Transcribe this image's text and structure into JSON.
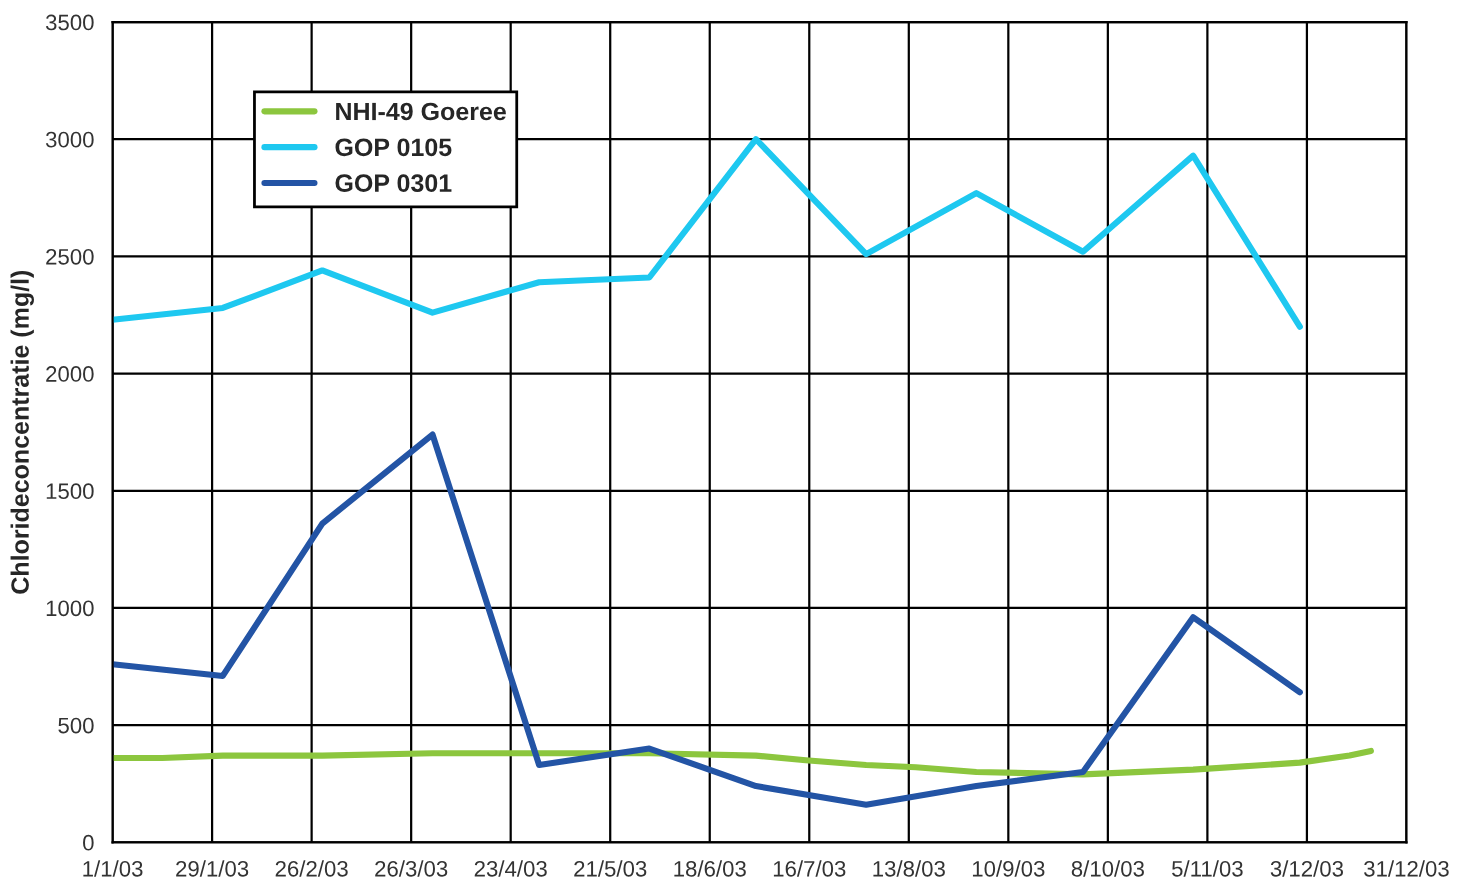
{
  "chart_data": {
    "type": "line",
    "ylabel": "Chlorideconcentratie (mg/l)",
    "series": [
      {
        "name": "NHI-49 Goeree",
        "color": "#8cc63e",
        "x": [
          "2003-01-01",
          "2003-01-15",
          "2003-02-01",
          "2003-03-01",
          "2003-04-01",
          "2003-05-01",
          "2003-06-01",
          "2003-07-01",
          "2003-07-15",
          "2003-08-01",
          "2003-08-15",
          "2003-09-01",
          "2003-10-01",
          "2003-11-01",
          "2003-12-01",
          "2003-12-15",
          "2003-12-21"
        ],
        "values": [
          360,
          360,
          370,
          370,
          380,
          380,
          380,
          370,
          350,
          330,
          320,
          300,
          290,
          310,
          340,
          370,
          390
        ]
      },
      {
        "name": "GOP 0105",
        "color": "#1ec8f0",
        "x": [
          "2003-01-01",
          "2003-02-01",
          "2003-03-01",
          "2003-04-01",
          "2003-05-01",
          "2003-06-01",
          "2003-07-01",
          "2003-08-01",
          "2003-09-01",
          "2003-10-01",
          "2003-11-01",
          "2003-12-01"
        ],
        "values": [
          2230,
          2280,
          2440,
          2260,
          2390,
          2410,
          3000,
          2510,
          2770,
          2520,
          2930,
          2200
        ]
      },
      {
        "name": "GOP 0301",
        "color": "#2354a5",
        "x": [
          "2003-01-01",
          "2003-02-01",
          "2003-03-01",
          "2003-04-01",
          "2003-05-01",
          "2003-06-01",
          "2003-07-01",
          "2003-08-01",
          "2003-09-01",
          "2003-10-01",
          "2003-11-01",
          "2003-12-01"
        ],
        "values": [
          760,
          710,
          1360,
          1740,
          330,
          400,
          240,
          160,
          240,
          300,
          960,
          640
        ]
      }
    ],
    "xlim": [
      "2003-01-01",
      "2003-12-31"
    ],
    "xticks": [
      {
        "value": "2003-01-01",
        "label": "1/1/03"
      },
      {
        "value": "2003-01-29",
        "label": "29/1/03"
      },
      {
        "value": "2003-02-26",
        "label": "26/2/03"
      },
      {
        "value": "2003-03-26",
        "label": "26/3/03"
      },
      {
        "value": "2003-04-23",
        "label": "23/4/03"
      },
      {
        "value": "2003-05-21",
        "label": "21/5/03"
      },
      {
        "value": "2003-06-18",
        "label": "18/6/03"
      },
      {
        "value": "2003-07-16",
        "label": "16/7/03"
      },
      {
        "value": "2003-08-13",
        "label": "13/8/03"
      },
      {
        "value": "2003-09-10",
        "label": "10/9/03"
      },
      {
        "value": "2003-10-08",
        "label": "8/10/03"
      },
      {
        "value": "2003-11-05",
        "label": "5/11/03"
      },
      {
        "value": "2003-12-03",
        "label": "3/12/03"
      },
      {
        "value": "2003-12-31",
        "label": "31/12/03"
      }
    ],
    "ylim": [
      0,
      3500
    ],
    "yticks": [
      0,
      500,
      1000,
      1500,
      2000,
      2500,
      3000,
      3500
    ],
    "grid": true,
    "legend": "top left",
    "marker": "none",
    "line_style": "solid"
  }
}
